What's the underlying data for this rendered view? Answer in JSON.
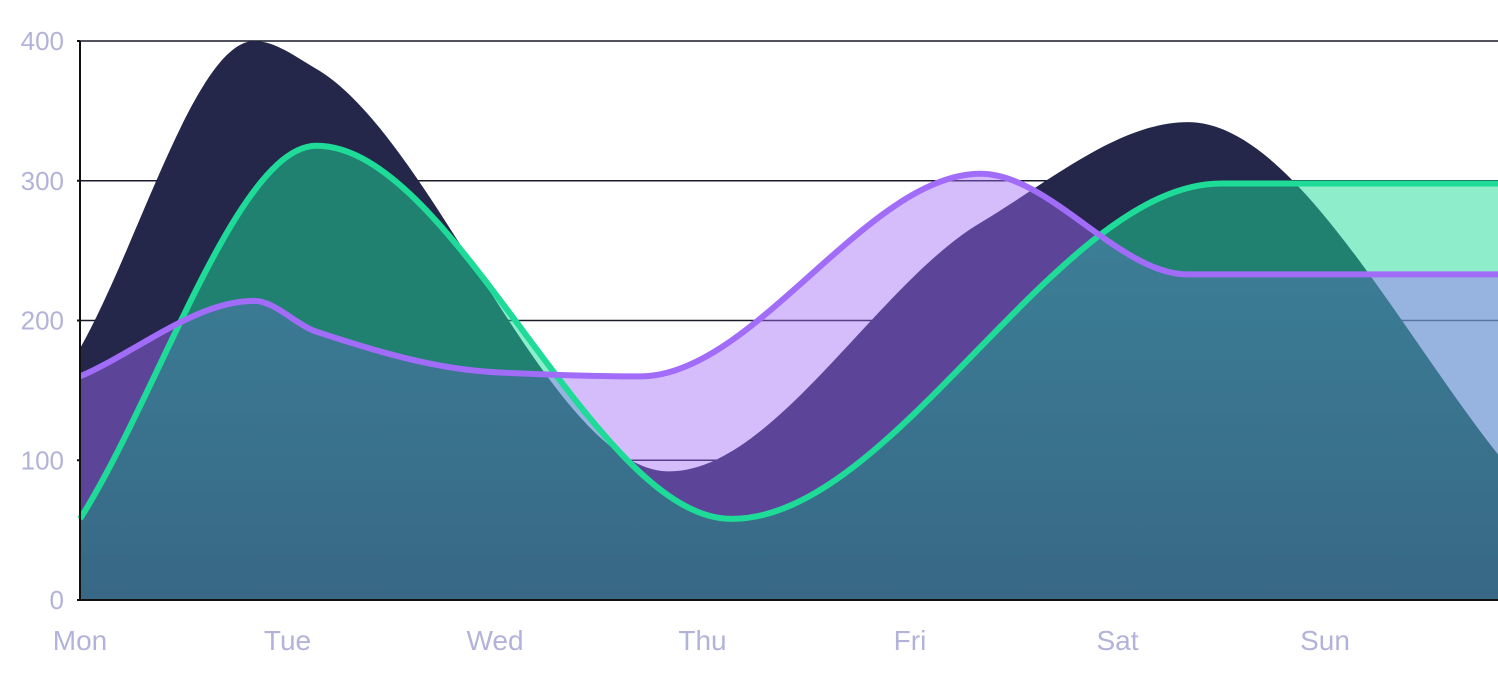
{
  "chart_data": {
    "type": "area",
    "categories": [
      "Mon",
      "Tue",
      "Wed",
      "Thu",
      "Fri",
      "Sat",
      "Sun"
    ],
    "x": [
      0,
      0.84,
      1.14,
      2.84,
      4.34,
      5.34,
      7.0
    ],
    "ylim": [
      0,
      400
    ],
    "yticks": [
      0,
      100,
      200,
      300,
      400
    ],
    "grid": true,
    "legend": "none",
    "series": [
      {
        "key": "dark",
        "color": "#24264a",
        "fill_opacity": 1,
        "points": [
          [
            0,
            180
          ],
          [
            0.84,
            400
          ],
          [
            1.14,
            380
          ],
          [
            2.84,
            92
          ],
          [
            4.34,
            270
          ],
          [
            5.34,
            342
          ],
          [
            7.0,
            75
          ]
        ]
      },
      {
        "key": "green",
        "color": "#1edc97",
        "fill_opacity": 0.5,
        "line": true,
        "points": [
          [
            0,
            58
          ],
          [
            1.14,
            325
          ],
          [
            3.14,
            58
          ],
          [
            5.5,
            298
          ],
          [
            7.0,
            298
          ]
        ]
      },
      {
        "key": "purple",
        "color": "#a16cf8",
        "fill_opacity": 0.45,
        "line": true,
        "points": [
          [
            0,
            160
          ],
          [
            0.84,
            214
          ],
          [
            1.14,
            192
          ],
          [
            2.0,
            163
          ],
          [
            2.7,
            160
          ],
          [
            4.34,
            305
          ],
          [
            5.34,
            233
          ],
          [
            7.0,
            233
          ]
        ]
      }
    ]
  }
}
